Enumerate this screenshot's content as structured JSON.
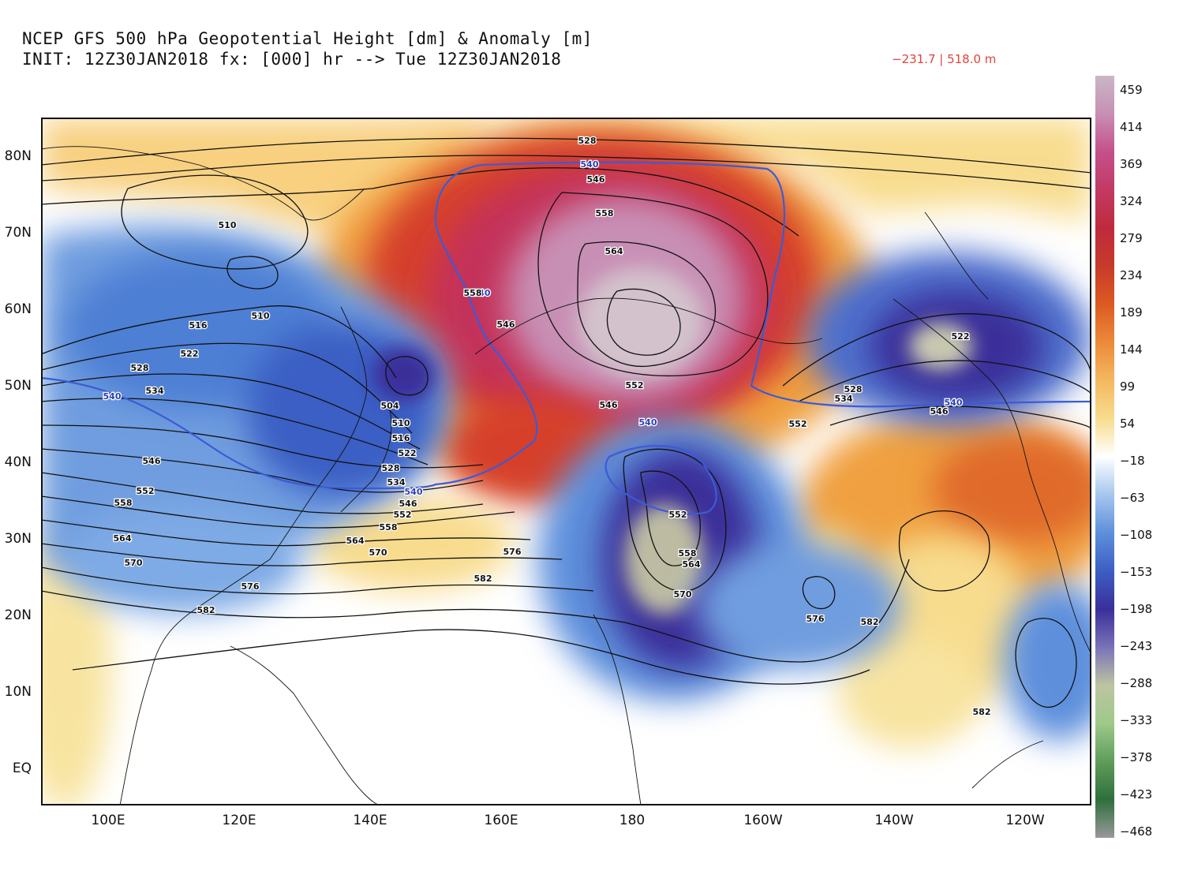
{
  "title_line1": "NCEP GFS 500 hPa Geopotential Height [dm] & Anomaly [m]",
  "title_line2": "INIT: 12Z30JAN2018 fx: [000] hr --> Tue 12Z30JAN2018",
  "minmax": "−231.7 | 518.0 m",
  "lat_labels": [
    "80N",
    "70N",
    "60N",
    "50N",
    "40N",
    "30N",
    "20N",
    "10N",
    "EQ"
  ],
  "lon_labels": [
    "100E",
    "120E",
    "140E",
    "160E",
    "180",
    "160W",
    "140W",
    "120W"
  ],
  "colorbar_labels": [
    "459",
    "414",
    "369",
    "324",
    "279",
    "234",
    "189",
    "144",
    "99",
    "54",
    "−18",
    "−63",
    "−108",
    "−153",
    "−198",
    "−243",
    "−288",
    "−333",
    "−378",
    "−423",
    "−468"
  ],
  "colorbar_colors": [
    "#c9b7c4",
    "#c88fb5",
    "#c4508a",
    "#c23a63",
    "#bf2a3c",
    "#c73a2a",
    "#dc5a22",
    "#ec8a3a",
    "#f4b860",
    "#f8dc8e",
    "#ffffff",
    "#a6c6ee",
    "#5d8fdb",
    "#3c5ec4",
    "#3a2f9a",
    "#7a72b8",
    "#bdc4a2",
    "#9ec98a",
    "#5f9c5a",
    "#2f6f3d",
    "#999999"
  ],
  "contour_labels": [
    "528",
    "540",
    "546",
    "558",
    "564",
    "510",
    "510",
    "516",
    "522",
    "528",
    "534",
    "540",
    "546",
    "552",
    "558",
    "564",
    "570",
    "576",
    "582",
    "504",
    "510",
    "516",
    "522",
    "528",
    "534",
    "540",
    "546",
    "552",
    "558",
    "564",
    "570",
    "576",
    "582",
    "540",
    "546",
    "558",
    "552",
    "546",
    "540",
    "552",
    "558",
    "564",
    "570",
    "528",
    "534",
    "540",
    "546",
    "552",
    "576",
    "582",
    "522",
    "582"
  ],
  "anomaly_colors": {
    "positive_strong": "#c4508a",
    "positive": "#c23a3a",
    "positive_weak": "#f0a040",
    "positive_faint": "#f8dc8e",
    "negative": "#5d8fdb",
    "negative_strong": "#3a2f9a",
    "anomaly_center": "#c9c9b0",
    "contour": "#111111",
    "contour_540": "#3b5bd6"
  }
}
